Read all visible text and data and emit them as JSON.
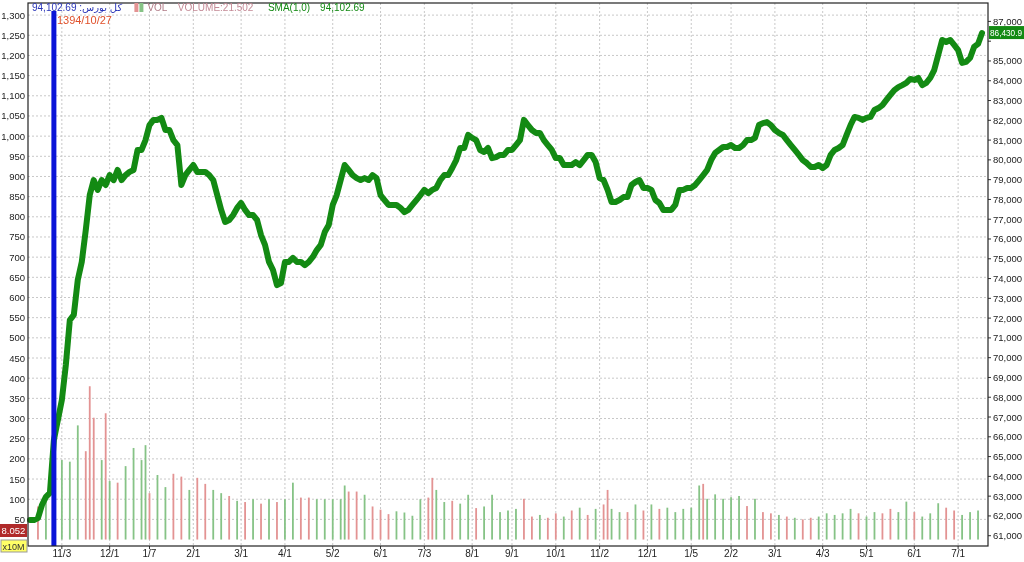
{
  "chart_data": {
    "type": "line",
    "title": "کل بورس: 94,102.69",
    "categories": [
      null,
      null,
      null,
      null,
      null,
      null,
      null,
      null,
      "11/3",
      null,
      null,
      null,
      null,
      null,
      null,
      null,
      null,
      null,
      null,
      null,
      "12/1",
      null,
      null,
      null,
      null,
      null,
      null,
      null,
      null,
      null,
      "1/7",
      null,
      null,
      null,
      null,
      null,
      null,
      null,
      null,
      null,
      null,
      "2/1",
      null,
      null,
      null,
      null,
      null,
      null,
      null,
      null,
      null,
      null,
      null,
      "3/1",
      null,
      null,
      null,
      null,
      null,
      null,
      null,
      null,
      null,
      null,
      "4/1",
      null,
      null,
      null,
      null,
      null,
      null,
      null,
      null,
      null,
      null,
      null,
      "5/2",
      null,
      null,
      null,
      null,
      null,
      null,
      null,
      null,
      null,
      null,
      null,
      "6/1",
      null,
      null,
      null,
      null,
      null,
      null,
      null,
      null,
      null,
      null,
      "7/3",
      null,
      null,
      null,
      null,
      null,
      null,
      null,
      null,
      null,
      null,
      null,
      "8/1",
      null,
      null,
      null,
      null,
      null,
      null,
      null,
      null,
      null,
      "9/1",
      null,
      null,
      null,
      null,
      null,
      null,
      null,
      null,
      null,
      null,
      "10/1",
      null,
      null,
      null,
      null,
      null,
      null,
      null,
      null,
      null,
      null,
      "11/2",
      null,
      null,
      null,
      null,
      null,
      null,
      null,
      null,
      null,
      null,
      null,
      "12/1",
      null,
      null,
      null,
      null,
      null,
      null,
      null,
      null,
      null,
      null,
      "1/5",
      null,
      null,
      null,
      null,
      null,
      null,
      null,
      null,
      null,
      "2/2",
      null,
      null,
      null,
      null,
      null,
      null,
      null,
      null,
      null,
      null,
      "3/1",
      null,
      null,
      null,
      null,
      null,
      null,
      null,
      null,
      null,
      null,
      null,
      "4/3",
      null,
      null,
      null,
      null,
      null,
      null,
      null,
      null,
      null,
      null,
      "5/1",
      null,
      null,
      null,
      null,
      null,
      null,
      null,
      null,
      null,
      null,
      null,
      "6/1",
      null,
      null,
      null,
      null,
      null,
      null,
      null,
      null,
      null,
      null,
      "7/1",
      null,
      null,
      null,
      null,
      null,
      null,
      null
    ],
    "ylim": [
      -16,
      1330
    ],
    "yticks": [
      50,
      100,
      150,
      200,
      250,
      300,
      350,
      400,
      450,
      500,
      550,
      600,
      650,
      700,
      750,
      800,
      850,
      900,
      950,
      {
        "value": 1000,
        "label": "1,000"
      },
      {
        "value": 1050,
        "label": "1,050"
      },
      {
        "value": 1100,
        "label": "1,100"
      },
      {
        "value": 1150,
        "label": "1,150"
      },
      {
        "value": 1200,
        "label": "1,200"
      },
      {
        "value": 1250,
        "label": "1,250"
      },
      {
        "value": 1300,
        "label": "1,300"
      }
    ],
    "y2lim": [
      60480,
      87930
    ],
    "y2ticks": [
      {
        "value": 61000,
        "label": "61,000"
      },
      {
        "value": 62000,
        "label": "62,000"
      },
      {
        "value": 63000,
        "label": "63,000"
      },
      {
        "value": 64000,
        "label": "64,000"
      },
      {
        "value": 65000,
        "label": "65,000"
      },
      {
        "value": 66000,
        "label": "66,000"
      },
      {
        "value": 67000,
        "label": "67,000"
      },
      {
        "value": 68000,
        "label": "68,000"
      },
      {
        "value": 69000,
        "label": "69,000"
      },
      {
        "value": 70000,
        "label": "70,000"
      },
      {
        "value": 71000,
        "label": "71,000"
      },
      {
        "value": 72000,
        "label": "72,000"
      },
      {
        "value": 73000,
        "label": "73,000"
      },
      {
        "value": 74000,
        "label": "74,000"
      },
      {
        "value": 75000,
        "label": "75,000"
      },
      {
        "value": 76000,
        "label": "76,000"
      },
      {
        "value": 77000,
        "label": "77,000"
      },
      {
        "value": 78000,
        "label": "78,000"
      },
      {
        "value": 79000,
        "label": "79,000"
      },
      {
        "value": 80000,
        "label": "80,000"
      },
      {
        "value": 81000,
        "label": "81,000"
      },
      {
        "value": 82000,
        "label": "82,000"
      },
      {
        "value": 83000,
        "label": "83,000"
      },
      {
        "value": 84000,
        "label": "84,000"
      },
      {
        "value": 85000,
        "label": "85,000"
      },
      {
        "value": 86000,
        "label": null
      },
      {
        "value": 87000,
        "label": "87,000"
      }
    ],
    "grid": true,
    "legend": "top left",
    "series": [
      {
        "name": "VOL",
        "type": "bar",
        "color": "#b07a86",
        "values": [
          null,
          null,
          82,
          null,
          93,
          null,
          null,
          null,
          197,
          null,
          193,
          null,
          283,
          null,
          219,
          380,
          302,
          null,
          197,
          313,
          145,
          null,
          141,
          null,
          182,
          null,
          227,
          null,
          197,
          234,
          115,
          null,
          160,
          null,
          130,
          null,
          163,
          null,
          156,
          null,
          123,
          null,
          153,
          null,
          138,
          null,
          123,
          null,
          115,
          null,
          108,
          null,
          96,
          null,
          93,
          null,
          100,
          null,
          89,
          null,
          100,
          null,
          93,
          null,
          100,
          null,
          141,
          null,
          104,
          null,
          104,
          null,
          100,
          null,
          100,
          null,
          100,
          null,
          100,
          134,
          119,
          null,
          119,
          null,
          111,
          null,
          82,
          null,
          74,
          null,
          63,
          null,
          70,
          null,
          67,
          null,
          59,
          null,
          100,
          null,
          104,
          153,
          123,
          null,
          93,
          null,
          96,
          null,
          89,
          null,
          111,
          null,
          78,
          null,
          82,
          null,
          111,
          null,
          68,
          null,
          72,
          null,
          76,
          null,
          101,
          null,
          57,
          null,
          61,
          null,
          54,
          null,
          65,
          null,
          57,
          null,
          72,
          null,
          79,
          null,
          61,
          null,
          76,
          null,
          87,
          123,
          76,
          null,
          68,
          null,
          68,
          null,
          87,
          null,
          72,
          null,
          87,
          null,
          76,
          null,
          79,
          null,
          68,
          null,
          76,
          null,
          79,
          null,
          134,
          138,
          101,
          null,
          112,
          null,
          101,
          null,
          105,
          null,
          108,
          null,
          83,
          null,
          101,
          null,
          68,
          null,
          65,
          null,
          61,
          null,
          57,
          null,
          54,
          null,
          50,
          null,
          54,
          null,
          57,
          null,
          65,
          null,
          61,
          null,
          65,
          null,
          76,
          null,
          65,
          null,
          57,
          null,
          68,
          null,
          65,
          null,
          76,
          null,
          68,
          null,
          94,
          null,
          68,
          null,
          57,
          null,
          65,
          null,
          90,
          null,
          79,
          null,
          72,
          null,
          61,
          null,
          68,
          null,
          72,
          null,
          null
        ],
        "colors": [
          null,
          null,
          "#e39393",
          null,
          "#86c386",
          null,
          null,
          null,
          "#86c386",
          null,
          "#86c386",
          null,
          "#86c386",
          null,
          "#e39393",
          "#e39393",
          "#e39393",
          null,
          "#86c386",
          "#e39393",
          "#86c386",
          null,
          "#e39393",
          null,
          "#86c386",
          null,
          "#86c386",
          null,
          "#86c386",
          "#86c386",
          "#e39393",
          null,
          "#86c386",
          null,
          "#86c386",
          null,
          "#e39393",
          null,
          "#e39393",
          null,
          "#86c386",
          null,
          "#e39393",
          null,
          "#e39393",
          null,
          "#86c386",
          null,
          "#86c386",
          null,
          "#e39393",
          null,
          "#86c386",
          null,
          "#e39393",
          null,
          "#86c386",
          null,
          "#e39393",
          null,
          "#86c386",
          null,
          "#e39393",
          null,
          "#86c386",
          null,
          "#86c386",
          null,
          "#e39393",
          null,
          "#e39393",
          null,
          "#86c386",
          null,
          "#86c386",
          null,
          "#86c386",
          null,
          "#86c386",
          "#86c386",
          "#e39393",
          null,
          "#e39393",
          null,
          "#86c386",
          null,
          "#e39393",
          null,
          "#e39393",
          null,
          "#e39393",
          null,
          "#86c386",
          null,
          "#86c386",
          null,
          "#86c386",
          null,
          "#86c386",
          null,
          "#e39393",
          "#e39393",
          "#86c386",
          null,
          "#86c386",
          null,
          "#e39393",
          null,
          "#86c386",
          null,
          "#86c386",
          null,
          "#e39393",
          null,
          "#86c386",
          null,
          "#86c386",
          null,
          "#86c386",
          null,
          "#86c386",
          null,
          "#86c386",
          null,
          "#e39393",
          null,
          "#e39393",
          null,
          "#86c386",
          null,
          "#e39393",
          null,
          "#e39393",
          null,
          "#86c386",
          null,
          "#e39393",
          null,
          "#86c386",
          null,
          "#e39393",
          null,
          "#86c386",
          null,
          "#e39393",
          "#e39393",
          "#86c386",
          null,
          "#86c386",
          null,
          "#e39393",
          null,
          "#86c386",
          null,
          "#e39393",
          null,
          "#86c386",
          null,
          "#e39393",
          null,
          "#86c386",
          null,
          "#86c386",
          null,
          "#86c386",
          null,
          "#86c386",
          null,
          "#86c386",
          "#e39393",
          "#86c386",
          null,
          "#86c386",
          null,
          "#86c386",
          null,
          "#86c386",
          null,
          "#86c386",
          null,
          "#e39393",
          null,
          "#86c386",
          null,
          "#e39393",
          null,
          "#e39393",
          null,
          "#86c386",
          null,
          "#e39393",
          null,
          "#86c386",
          null,
          "#e39393",
          null,
          "#e39393",
          null,
          "#86c386",
          null,
          "#86c386",
          null,
          "#86c386",
          null,
          "#86c386",
          null,
          "#86c386",
          null,
          "#e39393",
          null,
          "#86c386",
          null,
          "#86c386",
          null,
          "#e39393",
          null,
          "#e39393",
          null,
          "#86c386",
          null,
          "#86c386",
          null,
          "#e39393",
          null,
          "#86c386",
          null,
          "#86c386",
          null,
          "#86c386",
          null,
          "#e39393",
          null,
          "#e39393",
          null,
          "#86c386",
          null,
          "#86c386",
          null,
          "#86c386",
          null,
          null
        ]
      },
      {
        "name": "SMA(1,0)",
        "axis": "y2",
        "color": "#138a13",
        "values": [
          61790,
          61790,
          61890,
          62550,
          62960,
          63160,
          65840,
          66850,
          67860,
          69630,
          71900,
          72160,
          73930,
          74840,
          76450,
          78220,
          78980,
          78480,
          78980,
          78730,
          79230,
          78980,
          79490,
          78980,
          79230,
          79390,
          79490,
          80500,
          80500,
          81000,
          81760,
          82020,
          82020,
          82120,
          81510,
          81510,
          81000,
          80750,
          78730,
          79230,
          79490,
          79740,
          79390,
          79390,
          79390,
          79230,
          78980,
          78220,
          77470,
          76860,
          76960,
          77210,
          77570,
          77820,
          77470,
          77210,
          77210,
          76960,
          76200,
          75700,
          74840,
          74430,
          73670,
          73770,
          74840,
          74840,
          75040,
          74840,
          74840,
          74680,
          74840,
          75090,
          75440,
          75700,
          76350,
          76710,
          77720,
          78220,
          78980,
          79740,
          79490,
          79230,
          79080,
          78980,
          79080,
          78980,
          79230,
          79080,
          78220,
          77970,
          77720,
          77720,
          77720,
          77570,
          77360,
          77470,
          77720,
          77970,
          78220,
          78480,
          78320,
          78480,
          78580,
          78980,
          79230,
          79230,
          79590,
          79990,
          80600,
          80600,
          81260,
          81110,
          81000,
          80500,
          80400,
          80600,
          80090,
          80140,
          80250,
          80250,
          80500,
          80500,
          80750,
          81000,
          82020,
          81760,
          81510,
          81360,
          81360,
          81000,
          80750,
          80500,
          80090,
          80090,
          79740,
          79740,
          79740,
          79890,
          79740,
          79990,
          80250,
          80250,
          79890,
          79080,
          78980,
          78480,
          77870,
          77870,
          77970,
          78120,
          78120,
          78730,
          78880,
          78980,
          78580,
          78580,
          78480,
          77970,
          77820,
          77470,
          77470,
          77470,
          77720,
          78480,
          78480,
          78580,
          78580,
          78730,
          78980,
          79230,
          79490,
          79990,
          80350,
          80500,
          80650,
          80650,
          80750,
          80600,
          80600,
          80750,
          81000,
          81000,
          81110,
          81760,
          81860,
          81910,
          81760,
          81510,
          81360,
          81260,
          81000,
          80750,
          80500,
          80250,
          79990,
          79840,
          79640,
          79640,
          79740,
          79590,
          79740,
          80250,
          80500,
          80600,
          80750,
          81260,
          81760,
          82170,
          82120,
          82020,
          82120,
          82170,
          82520,
          82620,
          82770,
          83030,
          83280,
          83530,
          83680,
          83780,
          83890,
          84090,
          84040,
          84140,
          83780,
          83890,
          84140,
          84540,
          85300,
          86060,
          85960,
          86060,
          85810,
          85550,
          84900,
          84950,
          85150,
          85710,
          85860,
          86410,
          null
        ]
      }
    ],
    "annotations": [
      "VOLUME:21.502",
      "94,102.69",
      "8.052",
      "x10M",
      "86,430.9",
      "1394/10/27"
    ]
  }
}
